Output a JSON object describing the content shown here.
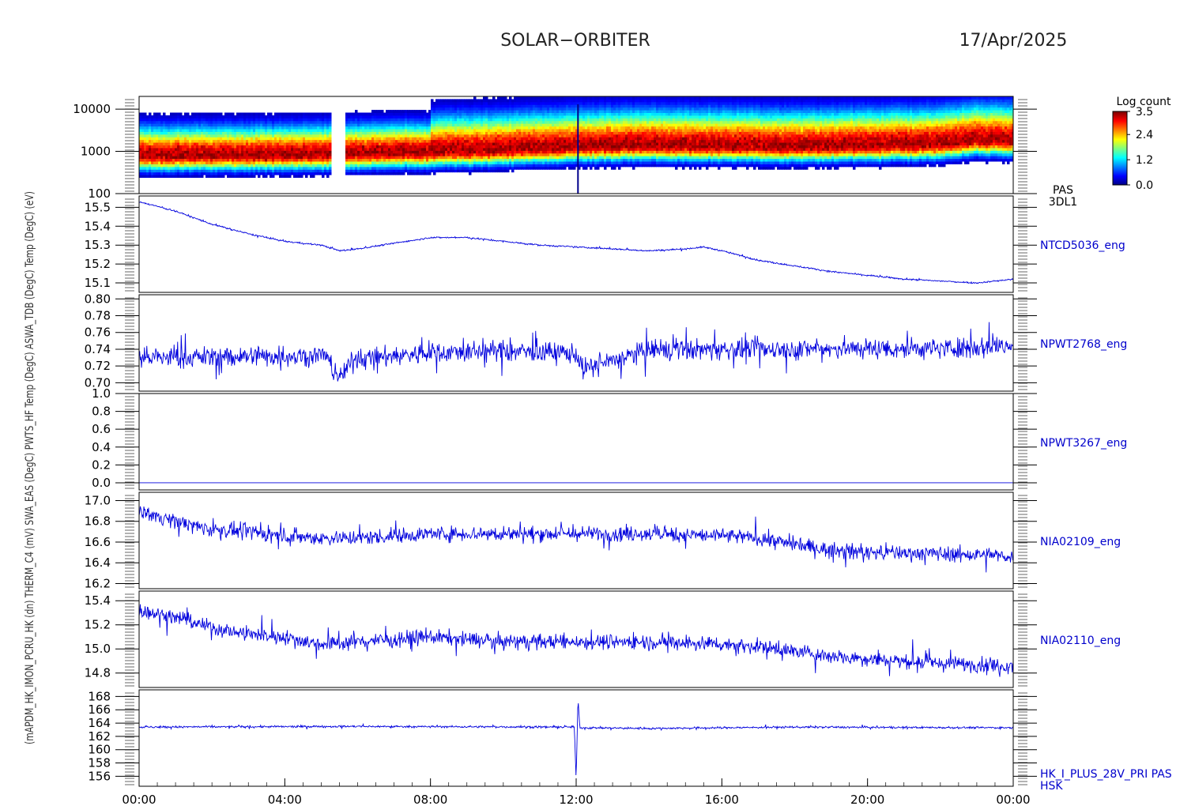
{
  "header": {
    "mission": "SOLAR−ORBITER",
    "date": "17/Apr/2025"
  },
  "colors": {
    "trace": "#0000dd",
    "axis": "#000000",
    "label_right": "#0000cc"
  },
  "left_axis_overlap_text": "(mAPDM_HK_IMON_PCRU_HK (dn) THERM_C4 (mV) SWA_EAS (DegC) PWTS_HF Temp (DegC) ASWA_TDB (DegC) Temp (DegC) (eV)",
  "chart_data": [
    {
      "type": "heatmap",
      "panel": "PAS 3DL1",
      "ylabel": "(eV)",
      "yscale": "log",
      "ylim": [
        100,
        20000
      ],
      "yticks": [
        "10000",
        "1000",
        "100"
      ],
      "right_label_lines": [
        "PAS",
        "3DL1"
      ],
      "colorbar": {
        "title": "Log count",
        "ticks": [
          "3.5",
          "2.4",
          "1.2",
          "0.0"
        ],
        "range": [
          0.0,
          3.5
        ]
      },
      "peak_energy_eV": [
        [
          0,
          800
        ],
        [
          2,
          820
        ],
        [
          4,
          850
        ],
        [
          5,
          860
        ],
        [
          6,
          900
        ],
        [
          8,
          1000
        ],
        [
          10,
          1100
        ],
        [
          11,
          1200
        ],
        [
          12,
          1300
        ],
        [
          14,
          1400
        ],
        [
          16,
          1350
        ],
        [
          18,
          1300
        ],
        [
          20,
          1400
        ],
        [
          22,
          1500
        ],
        [
          23,
          1900
        ],
        [
          24,
          1800
        ]
      ],
      "data_gap_hours": [
        5.25,
        5.6
      ]
    },
    {
      "type": "line",
      "name": "NTCD5036_eng",
      "ylabel": "Temp (DegC)",
      "ylim": [
        15.05,
        15.56
      ],
      "yticks": [
        "15.5",
        "15.4",
        "15.3",
        "15.2",
        "15.1"
      ],
      "noise": 0.004,
      "x_hours": [
        0,
        1,
        2,
        3,
        4,
        5,
        5.5,
        6,
        7,
        8,
        9,
        10,
        11,
        12,
        13,
        14,
        15,
        15.5,
        16,
        17,
        18,
        19,
        20,
        21,
        22,
        23,
        24
      ],
      "y": [
        15.53,
        15.48,
        15.41,
        15.36,
        15.32,
        15.3,
        15.27,
        15.28,
        15.31,
        15.34,
        15.34,
        15.32,
        15.3,
        15.29,
        15.28,
        15.27,
        15.28,
        15.29,
        15.27,
        15.22,
        15.19,
        15.16,
        15.14,
        15.12,
        15.11,
        15.1,
        15.12
      ]
    },
    {
      "type": "line",
      "name": "NPWT2768_eng",
      "ylabel": "PWTS_HF Temp (DegC)",
      "ylim": [
        0.69,
        0.805
      ],
      "yticks": [
        "0.80",
        "0.78",
        "0.76",
        "0.74",
        "0.72",
        "0.70"
      ],
      "noise": 0.012,
      "x_hours": [
        0,
        2,
        4,
        5.1,
        5.5,
        5.9,
        8,
        10,
        12,
        12.2,
        14,
        16,
        18,
        20,
        22,
        24
      ],
      "y": [
        0.73,
        0.731,
        0.732,
        0.733,
        0.706,
        0.728,
        0.736,
        0.738,
        0.735,
        0.716,
        0.739,
        0.74,
        0.74,
        0.741,
        0.741,
        0.745
      ]
    },
    {
      "type": "line",
      "name": "NPWT3267_eng",
      "ylabel": "THERM_C4 (mV)",
      "ylim": [
        -0.08,
        1.0
      ],
      "yticks": [
        "1.0",
        "0.8",
        "0.6",
        "0.4",
        "0.2",
        "0.0"
      ],
      "noise": 0.0,
      "x_hours": [
        0,
        24
      ],
      "y": [
        0.0,
        0.0
      ]
    },
    {
      "type": "line",
      "name": "NIA02109_eng",
      "ylabel": "SWA_EAS (DegC)",
      "ylim": [
        16.15,
        17.08
      ],
      "yticks": [
        "17.0",
        "16.8",
        "16.6",
        "16.4",
        "16.2"
      ],
      "noise": 0.07,
      "x_hours": [
        0,
        1,
        2,
        3,
        4,
        5,
        6,
        8,
        10,
        12,
        14,
        16,
        17,
        18,
        19,
        20,
        22,
        24
      ],
      "y": [
        16.9,
        16.8,
        16.72,
        16.7,
        16.66,
        16.64,
        16.64,
        16.68,
        16.68,
        16.68,
        16.68,
        16.66,
        16.64,
        16.58,
        16.52,
        16.5,
        16.49,
        16.46
      ]
    },
    {
      "type": "line",
      "name": "NIA02110_eng",
      "ylabel": "(mA)",
      "ylim": [
        14.68,
        15.48
      ],
      "yticks": [
        "15.4",
        "15.2",
        "15.0",
        "14.8"
      ],
      "noise": 0.06,
      "x_hours": [
        0,
        1,
        2,
        3,
        4,
        5,
        6,
        8,
        10,
        12,
        14,
        16,
        17,
        18,
        19,
        20,
        22,
        24
      ],
      "y": [
        15.32,
        15.26,
        15.18,
        15.12,
        15.1,
        15.04,
        15.06,
        15.1,
        15.06,
        15.06,
        15.06,
        15.04,
        15.02,
        14.98,
        14.94,
        14.92,
        14.88,
        14.86
      ]
    },
    {
      "type": "line",
      "name": "HK_I_PLUS_28V_PRI PAS HSK",
      "ylabel": "APDM_HK_IMON_PCRU_HK (dn)",
      "ylim": [
        154.5,
        169
      ],
      "yticks": [
        "168",
        "166",
        "164",
        "162",
        "160",
        "158",
        "156"
      ],
      "noise": 0.15,
      "x_hours": [
        0,
        6,
        11.95,
        12.0,
        12.05,
        12.1,
        14,
        18,
        24
      ],
      "y": [
        163.4,
        163.5,
        163.4,
        155.3,
        168.0,
        163.3,
        163.2,
        163.4,
        163.3
      ],
      "right_label_lines": [
        "HK_I_PLUS_28V_PRI PAS",
        "HSK"
      ]
    }
  ],
  "x_axis": {
    "xlim_hours": [
      0,
      24
    ],
    "ticks": [
      "00:00",
      "04:00",
      "08:00",
      "12:00",
      "16:00",
      "20:00",
      "00:00"
    ]
  }
}
